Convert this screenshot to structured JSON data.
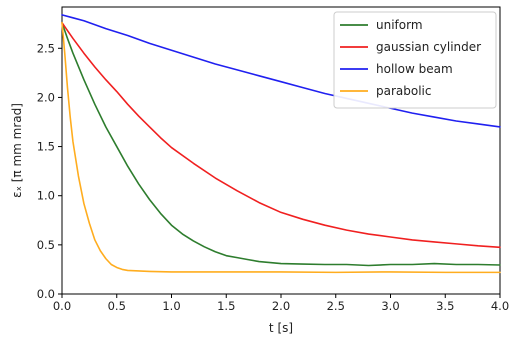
{
  "chart_data": {
    "type": "line",
    "xlabel": "t [s]",
    "ylabel": "εₓ [π mm mrad]",
    "xlim": [
      0.0,
      4.0
    ],
    "ylim": [
      0.0,
      2.92
    ],
    "xticks": [
      "0.0",
      "0.5",
      "1.0",
      "1.5",
      "2.0",
      "2.5",
      "3.0",
      "3.5",
      "4.0"
    ],
    "yticks": [
      "0.0",
      "0.5",
      "1.0",
      "1.5",
      "2.0",
      "2.5"
    ],
    "legend_position": "top-right",
    "grid": false,
    "series": [
      {
        "name": "uniform",
        "color": "#2e7d2e",
        "x": [
          0.0,
          0.05,
          0.1,
          0.2,
          0.3,
          0.4,
          0.5,
          0.6,
          0.7,
          0.8,
          0.9,
          1.0,
          1.1,
          1.2,
          1.3,
          1.4,
          1.5,
          1.6,
          1.7,
          1.8,
          1.9,
          2.0,
          2.2,
          2.4,
          2.6,
          2.8,
          3.0,
          3.2,
          3.4,
          3.6,
          3.8,
          4.0
        ],
        "y": [
          2.76,
          2.6,
          2.45,
          2.18,
          1.93,
          1.7,
          1.5,
          1.3,
          1.12,
          0.96,
          0.82,
          0.7,
          0.61,
          0.54,
          0.48,
          0.43,
          0.39,
          0.37,
          0.35,
          0.33,
          0.32,
          0.31,
          0.305,
          0.3,
          0.3,
          0.29,
          0.3,
          0.3,
          0.31,
          0.3,
          0.3,
          0.295
        ]
      },
      {
        "name": "gaussian cylinder",
        "color": "#f02020",
        "x": [
          0.0,
          0.05,
          0.1,
          0.2,
          0.3,
          0.4,
          0.5,
          0.6,
          0.7,
          0.8,
          0.9,
          1.0,
          1.2,
          1.4,
          1.6,
          1.8,
          2.0,
          2.2,
          2.4,
          2.6,
          2.8,
          3.0,
          3.2,
          3.4,
          3.6,
          3.8,
          4.0
        ],
        "y": [
          2.76,
          2.68,
          2.6,
          2.45,
          2.31,
          2.18,
          2.06,
          1.93,
          1.81,
          1.7,
          1.59,
          1.49,
          1.33,
          1.18,
          1.05,
          0.93,
          0.83,
          0.76,
          0.7,
          0.65,
          0.61,
          0.58,
          0.55,
          0.53,
          0.51,
          0.49,
          0.475
        ]
      },
      {
        "name": "hollow beam",
        "color": "#2020f0",
        "x": [
          0.0,
          0.1,
          0.2,
          0.4,
          0.6,
          0.8,
          1.0,
          1.2,
          1.4,
          1.6,
          1.8,
          2.0,
          2.2,
          2.4,
          2.6,
          2.8,
          3.0,
          3.2,
          3.4,
          3.6,
          3.8,
          4.0
        ],
        "y": [
          2.84,
          2.81,
          2.78,
          2.7,
          2.63,
          2.55,
          2.48,
          2.41,
          2.34,
          2.28,
          2.22,
          2.16,
          2.1,
          2.04,
          1.99,
          1.94,
          1.89,
          1.84,
          1.8,
          1.76,
          1.73,
          1.7
        ]
      },
      {
        "name": "parabolic",
        "color": "#ffad1f",
        "x": [
          0.0,
          0.025,
          0.05,
          0.075,
          0.1,
          0.15,
          0.2,
          0.25,
          0.3,
          0.35,
          0.4,
          0.45,
          0.5,
          0.55,
          0.6,
          0.7,
          0.8,
          1.0,
          1.5,
          2.0,
          2.5,
          3.0,
          3.5,
          4.0
        ],
        "y": [
          2.76,
          2.45,
          2.1,
          1.8,
          1.55,
          1.2,
          0.92,
          0.72,
          0.55,
          0.44,
          0.36,
          0.3,
          0.27,
          0.25,
          0.24,
          0.235,
          0.23,
          0.225,
          0.225,
          0.225,
          0.22,
          0.225,
          0.22,
          0.22
        ]
      }
    ]
  }
}
